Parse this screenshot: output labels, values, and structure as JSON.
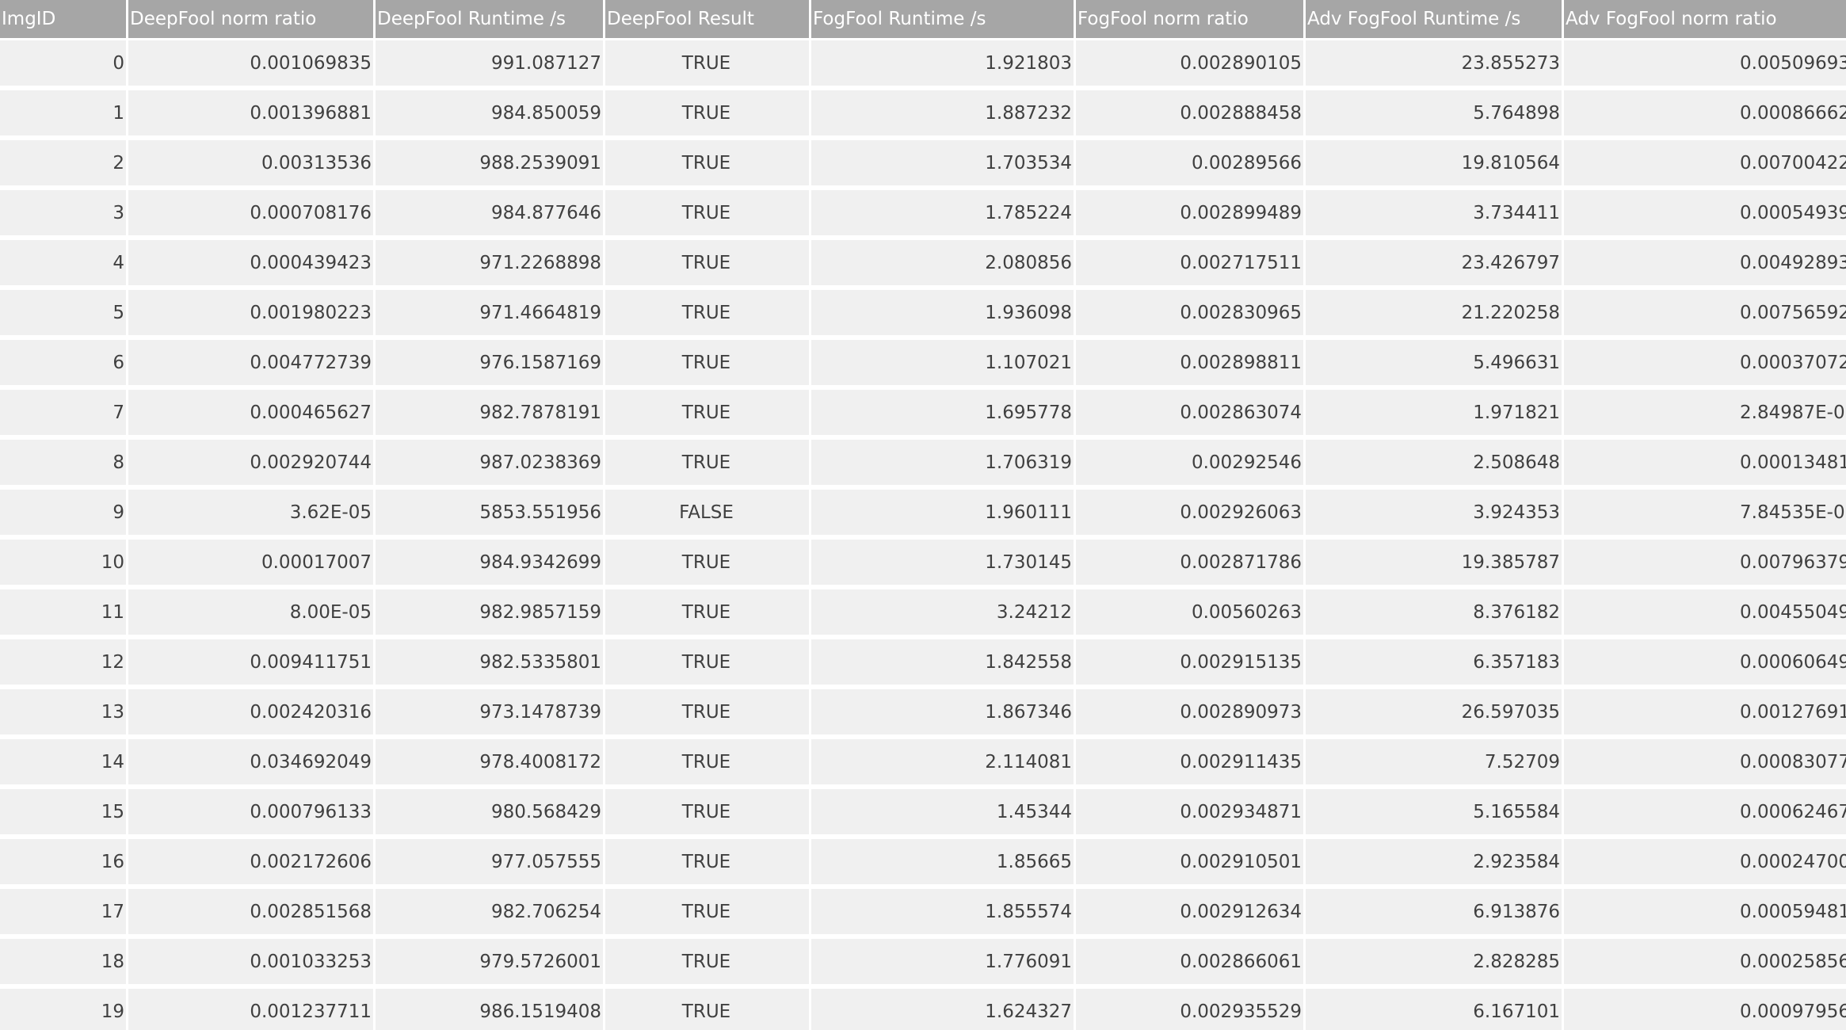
{
  "table": {
    "columns": [
      "ImgID",
      "DeepFool norm ratio",
      "DeepFool Runtime /s",
      "DeepFool Result",
      "FogFool Runtime /s",
      "FogFool norm ratio",
      "Adv FogFool Runtime /s",
      "Adv FogFool norm ratio"
    ],
    "rows": [
      [
        "0",
        "0.001069835",
        "991.087127",
        "TRUE",
        "1.921803",
        "0.002890105",
        "23.855273",
        "0.00509693"
      ],
      [
        "1",
        "0.001396881",
        "984.850059",
        "TRUE",
        "1.887232",
        "0.002888458",
        "5.764898",
        "0.00086662"
      ],
      [
        "2",
        "0.00313536",
        "988.2539091",
        "TRUE",
        "1.703534",
        "0.00289566",
        "19.810564",
        "0.00700422"
      ],
      [
        "3",
        "0.000708176",
        "984.877646",
        "TRUE",
        "1.785224",
        "0.002899489",
        "3.734411",
        "0.00054939"
      ],
      [
        "4",
        "0.000439423",
        "971.2268898",
        "TRUE",
        "2.080856",
        "0.002717511",
        "23.426797",
        "0.00492893"
      ],
      [
        "5",
        "0.001980223",
        "971.4664819",
        "TRUE",
        "1.936098",
        "0.002830965",
        "21.220258",
        "0.00756592"
      ],
      [
        "6",
        "0.004772739",
        "976.1587169",
        "TRUE",
        "1.107021",
        "0.002898811",
        "5.496631",
        "0.00037072"
      ],
      [
        "7",
        "0.000465627",
        "982.7878191",
        "TRUE",
        "1.695778",
        "0.002863074",
        "1.971821",
        "2.84987E-0"
      ],
      [
        "8",
        "0.002920744",
        "987.0238369",
        "TRUE",
        "1.706319",
        "0.00292546",
        "2.508648",
        "0.00013481"
      ],
      [
        "9",
        "3.62E-05",
        "5853.551956",
        "FALSE",
        "1.960111",
        "0.002926063",
        "3.924353",
        "7.84535E-0"
      ],
      [
        "10",
        "0.00017007",
        "984.9342699",
        "TRUE",
        "1.730145",
        "0.002871786",
        "19.385787",
        "0.00796379"
      ],
      [
        "11",
        "8.00E-05",
        "982.9857159",
        "TRUE",
        "3.24212",
        "0.00560263",
        "8.376182",
        "0.00455049"
      ],
      [
        "12",
        "0.009411751",
        "982.5335801",
        "TRUE",
        "1.842558",
        "0.002915135",
        "6.357183",
        "0.00060649"
      ],
      [
        "13",
        "0.002420316",
        "973.1478739",
        "TRUE",
        "1.867346",
        "0.002890973",
        "26.597035",
        "0.00127691"
      ],
      [
        "14",
        "0.034692049",
        "978.4008172",
        "TRUE",
        "2.114081",
        "0.002911435",
        "7.52709",
        "0.00083077"
      ],
      [
        "15",
        "0.000796133",
        "980.568429",
        "TRUE",
        "1.45344",
        "0.002934871",
        "5.165584",
        "0.00062467"
      ],
      [
        "16",
        "0.002172606",
        "977.057555",
        "TRUE",
        "1.85665",
        "0.002910501",
        "2.923584",
        "0.00024700"
      ],
      [
        "17",
        "0.002851568",
        "982.706254",
        "TRUE",
        "1.855574",
        "0.002912634",
        "6.913876",
        "0.00059481"
      ],
      [
        "18",
        "0.001033253",
        "979.5726001",
        "TRUE",
        "1.776091",
        "0.002866061",
        "2.828285",
        "0.00025856"
      ],
      [
        "19",
        "0.001237711",
        "986.1519408",
        "TRUE",
        "1.624327",
        "0.002935529",
        "6.167101",
        "0.00097956"
      ]
    ]
  }
}
